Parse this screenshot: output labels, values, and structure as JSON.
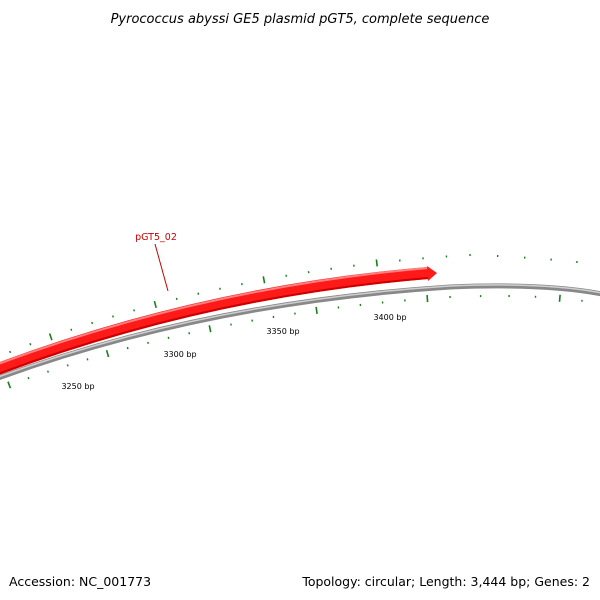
{
  "title": "Pyrococcus abyssi GE5 plasmid pGT5, complete sequence",
  "accession": "Accession: NC_001773",
  "summary": "Topology: circular; Length: 3,444 bp; Genes: 2",
  "colors": {
    "gene": "#ff1a1a",
    "gene_dark": "#cc0000",
    "backbone": "#888888",
    "backbone_light": "#cfcfcf",
    "ticks": "#1a7f1a",
    "gene_label": "#cc0000"
  },
  "gene": {
    "label": "pGT5_02",
    "strand": "forward",
    "arrow": true
  },
  "ruler": {
    "labels": [
      "3250 bp",
      "3300 bp",
      "3350 bp",
      "3400 bp"
    ],
    "major_positions": [
      3250,
      3300,
      3350,
      3400
    ],
    "minor_step": 10
  }
}
